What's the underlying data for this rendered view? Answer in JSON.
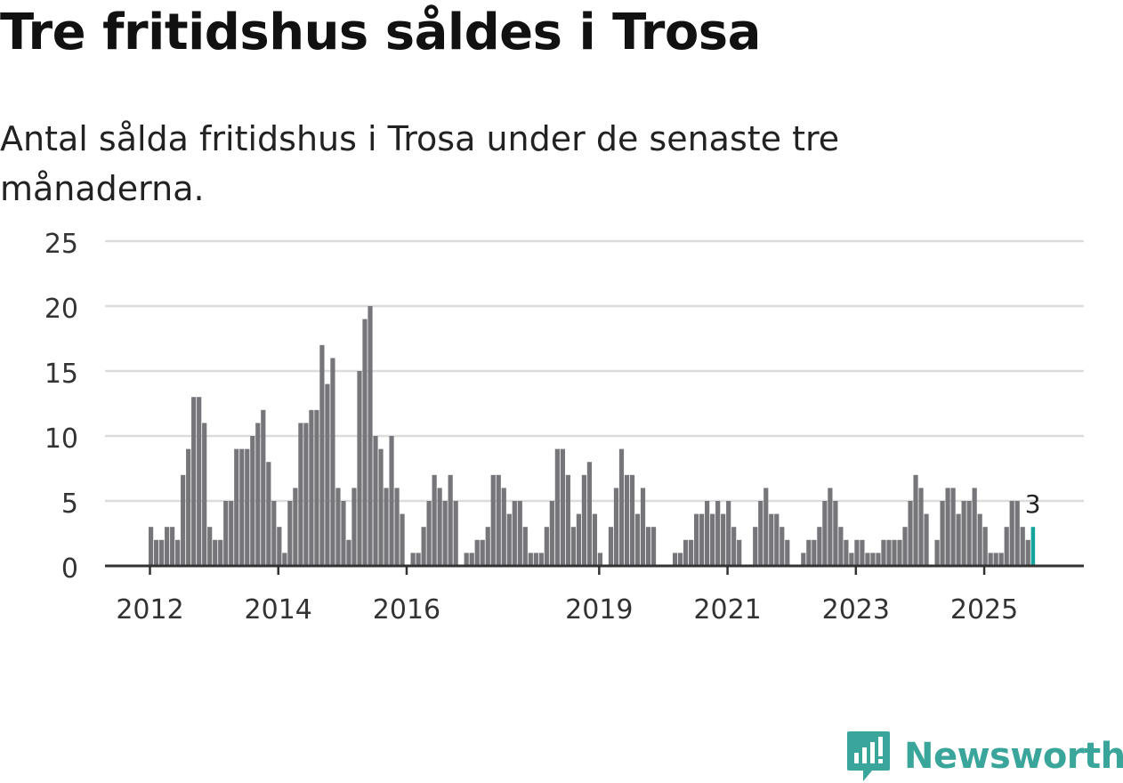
{
  "header": {
    "title": "Tre fritidshus såldes i Trosa",
    "subtitle": "Antal sålda fritidshus i Trosa under de senaste tre månaderna."
  },
  "logo": {
    "text": "Newsworthy"
  },
  "colors": {
    "bar": "#76757a",
    "highlight": "#15a49b",
    "grid": "#dcdcdc",
    "axis": "#333333",
    "brand": "#3aa59a"
  },
  "chart_data": {
    "type": "bar",
    "title": "Tre fritidshus såldes i Trosa",
    "xlabel": "",
    "ylabel": "",
    "ylim": [
      0,
      25
    ],
    "yticks": [
      0,
      5,
      10,
      15,
      20,
      25
    ],
    "grid": true,
    "start": {
      "year": 2012,
      "month": 1
    },
    "values": [
      3,
      2,
      2,
      3,
      3,
      2,
      7,
      9,
      13,
      13,
      11,
      3,
      2,
      2,
      5,
      5,
      9,
      9,
      9,
      10,
      11,
      12,
      8,
      5,
      3,
      1,
      5,
      6,
      11,
      11,
      12,
      12,
      17,
      14,
      16,
      6,
      5,
      2,
      6,
      15,
      19,
      20,
      10,
      9,
      6,
      10,
      6,
      4,
      0,
      1,
      1,
      3,
      5,
      7,
      6,
      5,
      7,
      5,
      0,
      1,
      1,
      2,
      2,
      3,
      7,
      7,
      6,
      4,
      5,
      5,
      3,
      1,
      1,
      1,
      3,
      5,
      9,
      9,
      7,
      3,
      4,
      7,
      8,
      4,
      1,
      0,
      3,
      6,
      9,
      7,
      7,
      4,
      6,
      3,
      3,
      0,
      0,
      0,
      1,
      1,
      2,
      2,
      4,
      4,
      5,
      4,
      5,
      4,
      5,
      3,
      2,
      0,
      0,
      3,
      5,
      6,
      4,
      4,
      3,
      2,
      0,
      0,
      1,
      2,
      2,
      3,
      5,
      6,
      5,
      3,
      2,
      1,
      2,
      2,
      1,
      1,
      1,
      2,
      2,
      2,
      2,
      3,
      5,
      7,
      6,
      4,
      0,
      2,
      5,
      6,
      6,
      4,
      5,
      5,
      6,
      4,
      3,
      1,
      1,
      1,
      3,
      5,
      5,
      3,
      2,
      3
    ],
    "highlight_last": true,
    "last_label": "3",
    "x_tick_labels": [
      {
        "year": 2012,
        "label": "2012"
      },
      {
        "year": 2014,
        "label": "2014"
      },
      {
        "year": 2016,
        "label": "2016"
      },
      {
        "year": 2019,
        "label": "2019"
      },
      {
        "year": 2021,
        "label": "2021"
      },
      {
        "year": 2023,
        "label": "2023"
      },
      {
        "year": 2025,
        "label": "2025"
      }
    ]
  }
}
